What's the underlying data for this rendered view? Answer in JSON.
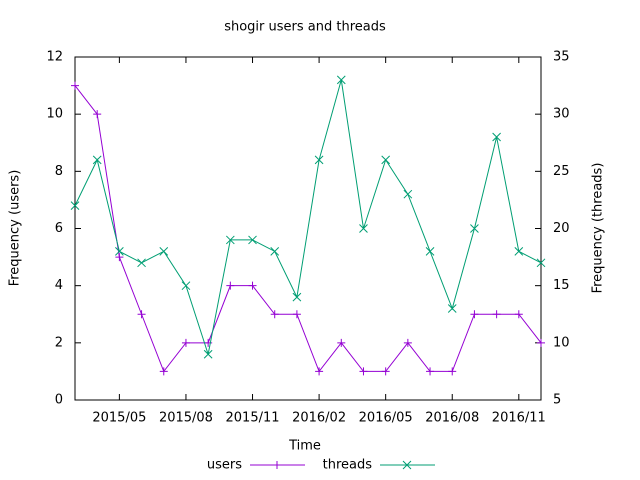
{
  "chart_data": {
    "type": "line",
    "title": "shogir users and threads",
    "xlabel": "Time",
    "ylabel": "Frequency (users)",
    "y2label": "Frequency (threads)",
    "x": [
      "2015/03",
      "2015/04",
      "2015/05",
      "2015/06",
      "2015/07",
      "2015/08",
      "2015/09",
      "2015/10",
      "2015/11",
      "2015/12",
      "2016/01",
      "2016/02",
      "2016/03",
      "2016/04",
      "2016/05",
      "2016/06",
      "2016/07",
      "2016/08",
      "2016/09",
      "2016/10",
      "2016/11",
      "2016/12"
    ],
    "xticks": [
      "2015/05",
      "2015/08",
      "2015/11",
      "2016/02",
      "2016/05",
      "2016/08",
      "2016/11"
    ],
    "ylim": [
      0,
      12
    ],
    "yticks": [
      0,
      2,
      4,
      6,
      8,
      10,
      12
    ],
    "y2lim": [
      5,
      35
    ],
    "y2ticks": [
      5,
      10,
      15,
      20,
      25,
      30,
      35
    ],
    "legend": "bottom",
    "series": [
      {
        "name": "users",
        "color": "#9400d3",
        "values": [
          11,
          10,
          5,
          3,
          1,
          2,
          2,
          4,
          4,
          3,
          3,
          1,
          2,
          1,
          1,
          2,
          1,
          1,
          3,
          3,
          3,
          2
        ]
      },
      {
        "name": "threads",
        "color": "#009e73",
        "axis": "y2",
        "values": [
          22,
          26,
          18,
          17,
          18,
          15,
          9,
          19,
          19,
          18,
          14,
          26,
          33,
          20,
          26,
          23,
          18,
          13,
          20,
          28,
          18,
          17
        ]
      }
    ]
  }
}
